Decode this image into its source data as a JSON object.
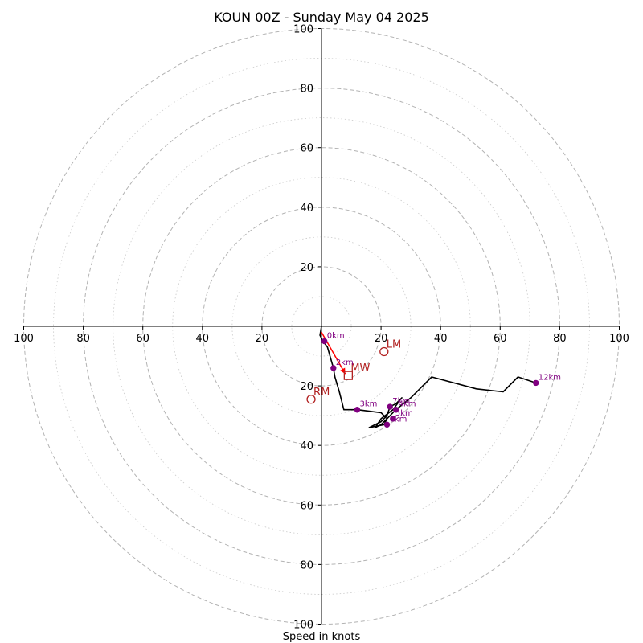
{
  "chart_data": {
    "type": "hodograph",
    "title": "KOUN 00Z - Sunday May 04 2025",
    "xlabel": "Speed in knots",
    "xlim": [
      -100,
      100
    ],
    "ylim": [
      -100,
      100
    ],
    "ring_spacing_major": 20,
    "ring_spacing_minor": 10,
    "tick_values": [
      20,
      40,
      60,
      80,
      100
    ],
    "tick_labels": [
      "20",
      "40",
      "60",
      "80",
      "100"
    ],
    "hodograph_trace": [
      [
        0,
        0
      ],
      [
        -0.5,
        -3
      ],
      [
        0.5,
        -5
      ],
      [
        2,
        -7
      ],
      [
        4,
        -14
      ],
      [
        4.5,
        -17
      ],
      [
        6,
        -22
      ],
      [
        7.5,
        -28
      ],
      [
        12,
        -28
      ],
      [
        20,
        -29
      ],
      [
        22,
        -31
      ],
      [
        21,
        -33
      ],
      [
        16,
        -34
      ],
      [
        20,
        -32
      ],
      [
        22,
        -30
      ],
      [
        23,
        -27
      ],
      [
        25,
        -26
      ],
      [
        27,
        -24
      ],
      [
        24,
        -28
      ],
      [
        20,
        -31
      ],
      [
        18,
        -34
      ],
      [
        20,
        -33
      ],
      [
        22,
        -31
      ],
      [
        25,
        -28
      ],
      [
        30,
        -24
      ],
      [
        37,
        -17
      ],
      [
        52,
        -21
      ],
      [
        61,
        -22
      ],
      [
        66,
        -17
      ],
      [
        72,
        -19
      ]
    ],
    "height_markers": [
      {
        "label": "0km",
        "u": 1,
        "v": -5
      },
      {
        "label": "2km",
        "u": 4,
        "v": -14
      },
      {
        "label": "3km",
        "u": 12,
        "v": -28
      },
      {
        "label": "4km",
        "u": 25,
        "v": -28
      },
      {
        "label": "5km",
        "u": 24,
        "v": -31
      },
      {
        "label": "6km",
        "u": 22,
        "v": -33
      },
      {
        "label": "7km",
        "u": 23,
        "v": -27
      },
      {
        "label": "12km",
        "u": 72,
        "v": -19
      }
    ],
    "storm_motions": [
      {
        "label": "RM",
        "u": -3.5,
        "v": -24.5,
        "marker": "circle"
      },
      {
        "label": "LM",
        "u": 21,
        "v": -8.5,
        "marker": "circle"
      },
      {
        "label": "MW",
        "u": 9,
        "v": -16.5,
        "marker": "square"
      }
    ],
    "shear_arrow": {
      "from": [
        0,
        -2
      ],
      "to": [
        8,
        -16
      ]
    },
    "colors": {
      "trace": "#000000",
      "markers": "#800080",
      "storm": "#b22222",
      "shear": "#ff0000",
      "ring": "#b3b3b3",
      "axis": "#000000"
    }
  }
}
